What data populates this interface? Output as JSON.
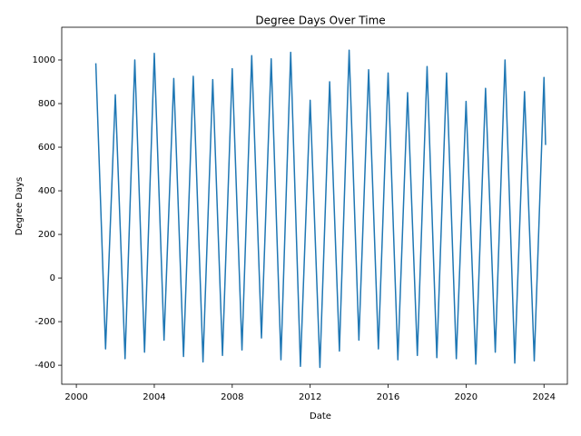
{
  "chart_data": {
    "type": "line",
    "title": "Degree Days Over Time",
    "x_label": "Date",
    "y_label": "Degree Days",
    "x": [
      2001,
      2001.25,
      2001.5,
      2001.75,
      2002,
      2002.25,
      2002.5,
      2002.75,
      2003,
      2003.25,
      2003.5,
      2003.75,
      2004,
      2004.25,
      2004.5,
      2004.75,
      2005,
      2005.25,
      2005.5,
      2005.75,
      2006,
      2006.25,
      2006.5,
      2006.75,
      2007,
      2007.25,
      2007.5,
      2007.75,
      2008,
      2008.25,
      2008.5,
      2008.75,
      2009,
      2009.25,
      2009.5,
      2009.75,
      2010,
      2010.25,
      2010.5,
      2010.75,
      2011,
      2011.25,
      2011.5,
      2011.75,
      2012,
      2012.25,
      2012.5,
      2012.75,
      2013,
      2013.25,
      2013.5,
      2013.75,
      2014,
      2014.25,
      2014.5,
      2014.75,
      2015,
      2015.25,
      2015.5,
      2015.75,
      2016,
      2016.25,
      2016.5,
      2016.75,
      2017,
      2017.25,
      2017.5,
      2017.75,
      2018,
      2018.25,
      2018.5,
      2018.75,
      2019,
      2019.25,
      2019.5,
      2019.75,
      2020,
      2020.25,
      2020.5,
      2020.75,
      2021,
      2021.25,
      2021.5,
      2021.75,
      2022,
      2022.25,
      2022.5,
      2022.75,
      2023,
      2023.25,
      2023.5,
      2023.75,
      2024,
      2024.08
    ],
    "series": [
      {
        "color": "#1f77b4",
        "values": [
          985,
          330,
          -325,
          258,
          840,
          235,
          -370,
          315,
          1000,
          330,
          -340,
          345,
          1030,
          373,
          -285,
          315,
          915,
          278,
          -360,
          283,
          925,
          270,
          -385,
          263,
          910,
          278,
          -355,
          303,
          960,
          315,
          -330,
          345,
          1020,
          373,
          -275,
          365,
          1005,
          315,
          -375,
          330,
          1035,
          315,
          -405,
          205,
          815,
          203,
          -410,
          245,
          900,
          283,
          -335,
          355,
          1045,
          380,
          -285,
          335,
          955,
          315,
          -325,
          308,
          940,
          283,
          -375,
          238,
          850,
          248,
          -355,
          308,
          970,
          303,
          -365,
          288,
          940,
          285,
          -370,
          220,
          810,
          208,
          -395,
          238,
          870,
          265,
          -340,
          330,
          1000,
          305,
          -390,
          233,
          855,
          238,
          -380,
          270,
          920,
          610
        ]
      }
    ],
    "xlim": [
      1999.25,
      2025.2
    ],
    "xticks": [
      2000,
      2004,
      2008,
      2012,
      2016,
      2020,
      2024
    ],
    "ylim": [
      -487,
      1150
    ],
    "yticks": [
      -400,
      -200,
      0,
      200,
      400,
      600,
      800,
      1000
    ],
    "grid": false
  }
}
